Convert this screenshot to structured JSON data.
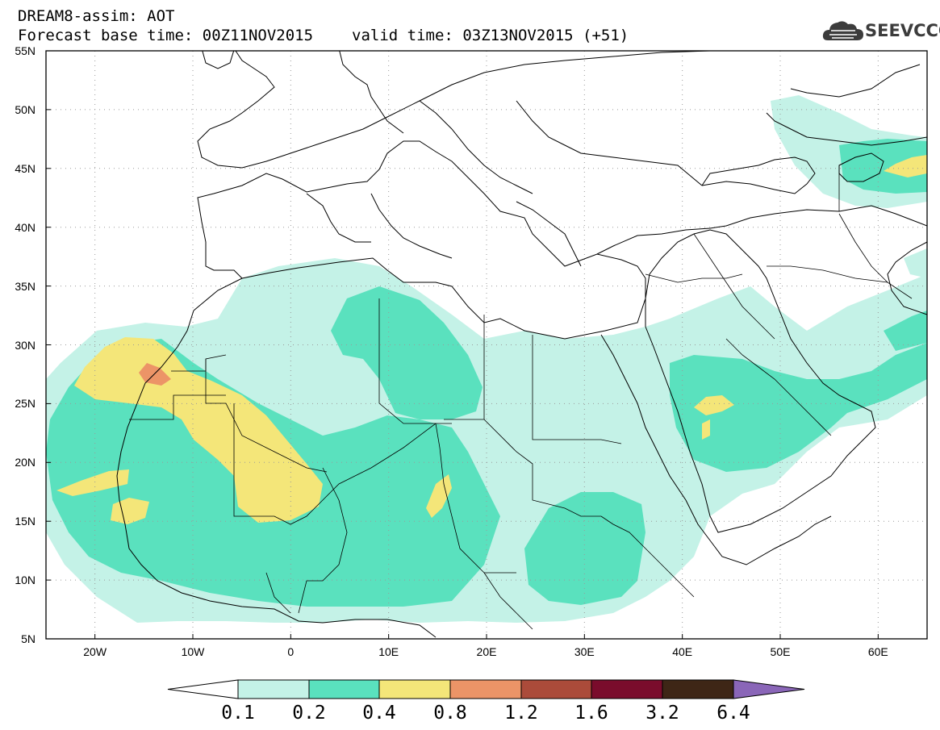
{
  "header": {
    "line1": "DREAM8-assim: AOT",
    "base_time": "Forecast base time: 00Z11NOV2015",
    "valid_time": "valid time: 03Z13NOV2015 (+51)"
  },
  "logo": {
    "text": "SEEVCCC",
    "icon": "cloud-icon"
  },
  "map": {
    "lon_range": [
      -25,
      65
    ],
    "lat_range": [
      5,
      55
    ],
    "grid": "dotted",
    "lat_labels": [
      "55N",
      "50N",
      "45N",
      "40N",
      "35N",
      "30N",
      "25N",
      "20N",
      "15N",
      "10N",
      "5N"
    ],
    "lon_labels": [
      "20W",
      "10W",
      "0",
      "10E",
      "20E",
      "30E",
      "40E",
      "50E",
      "60E"
    ]
  },
  "legend": {
    "labels": [
      "0.1",
      "0.2",
      "0.4",
      "0.8",
      "1.2",
      "1.6",
      "3.2",
      "6.4"
    ],
    "colors": [
      "#ffffff",
      "#c4f2e7",
      "#5ae1be",
      "#f4e679",
      "#ec9467",
      "#ab4b3a",
      "#7a0c2c",
      "#3e2616",
      "#8a66b8"
    ]
  }
}
